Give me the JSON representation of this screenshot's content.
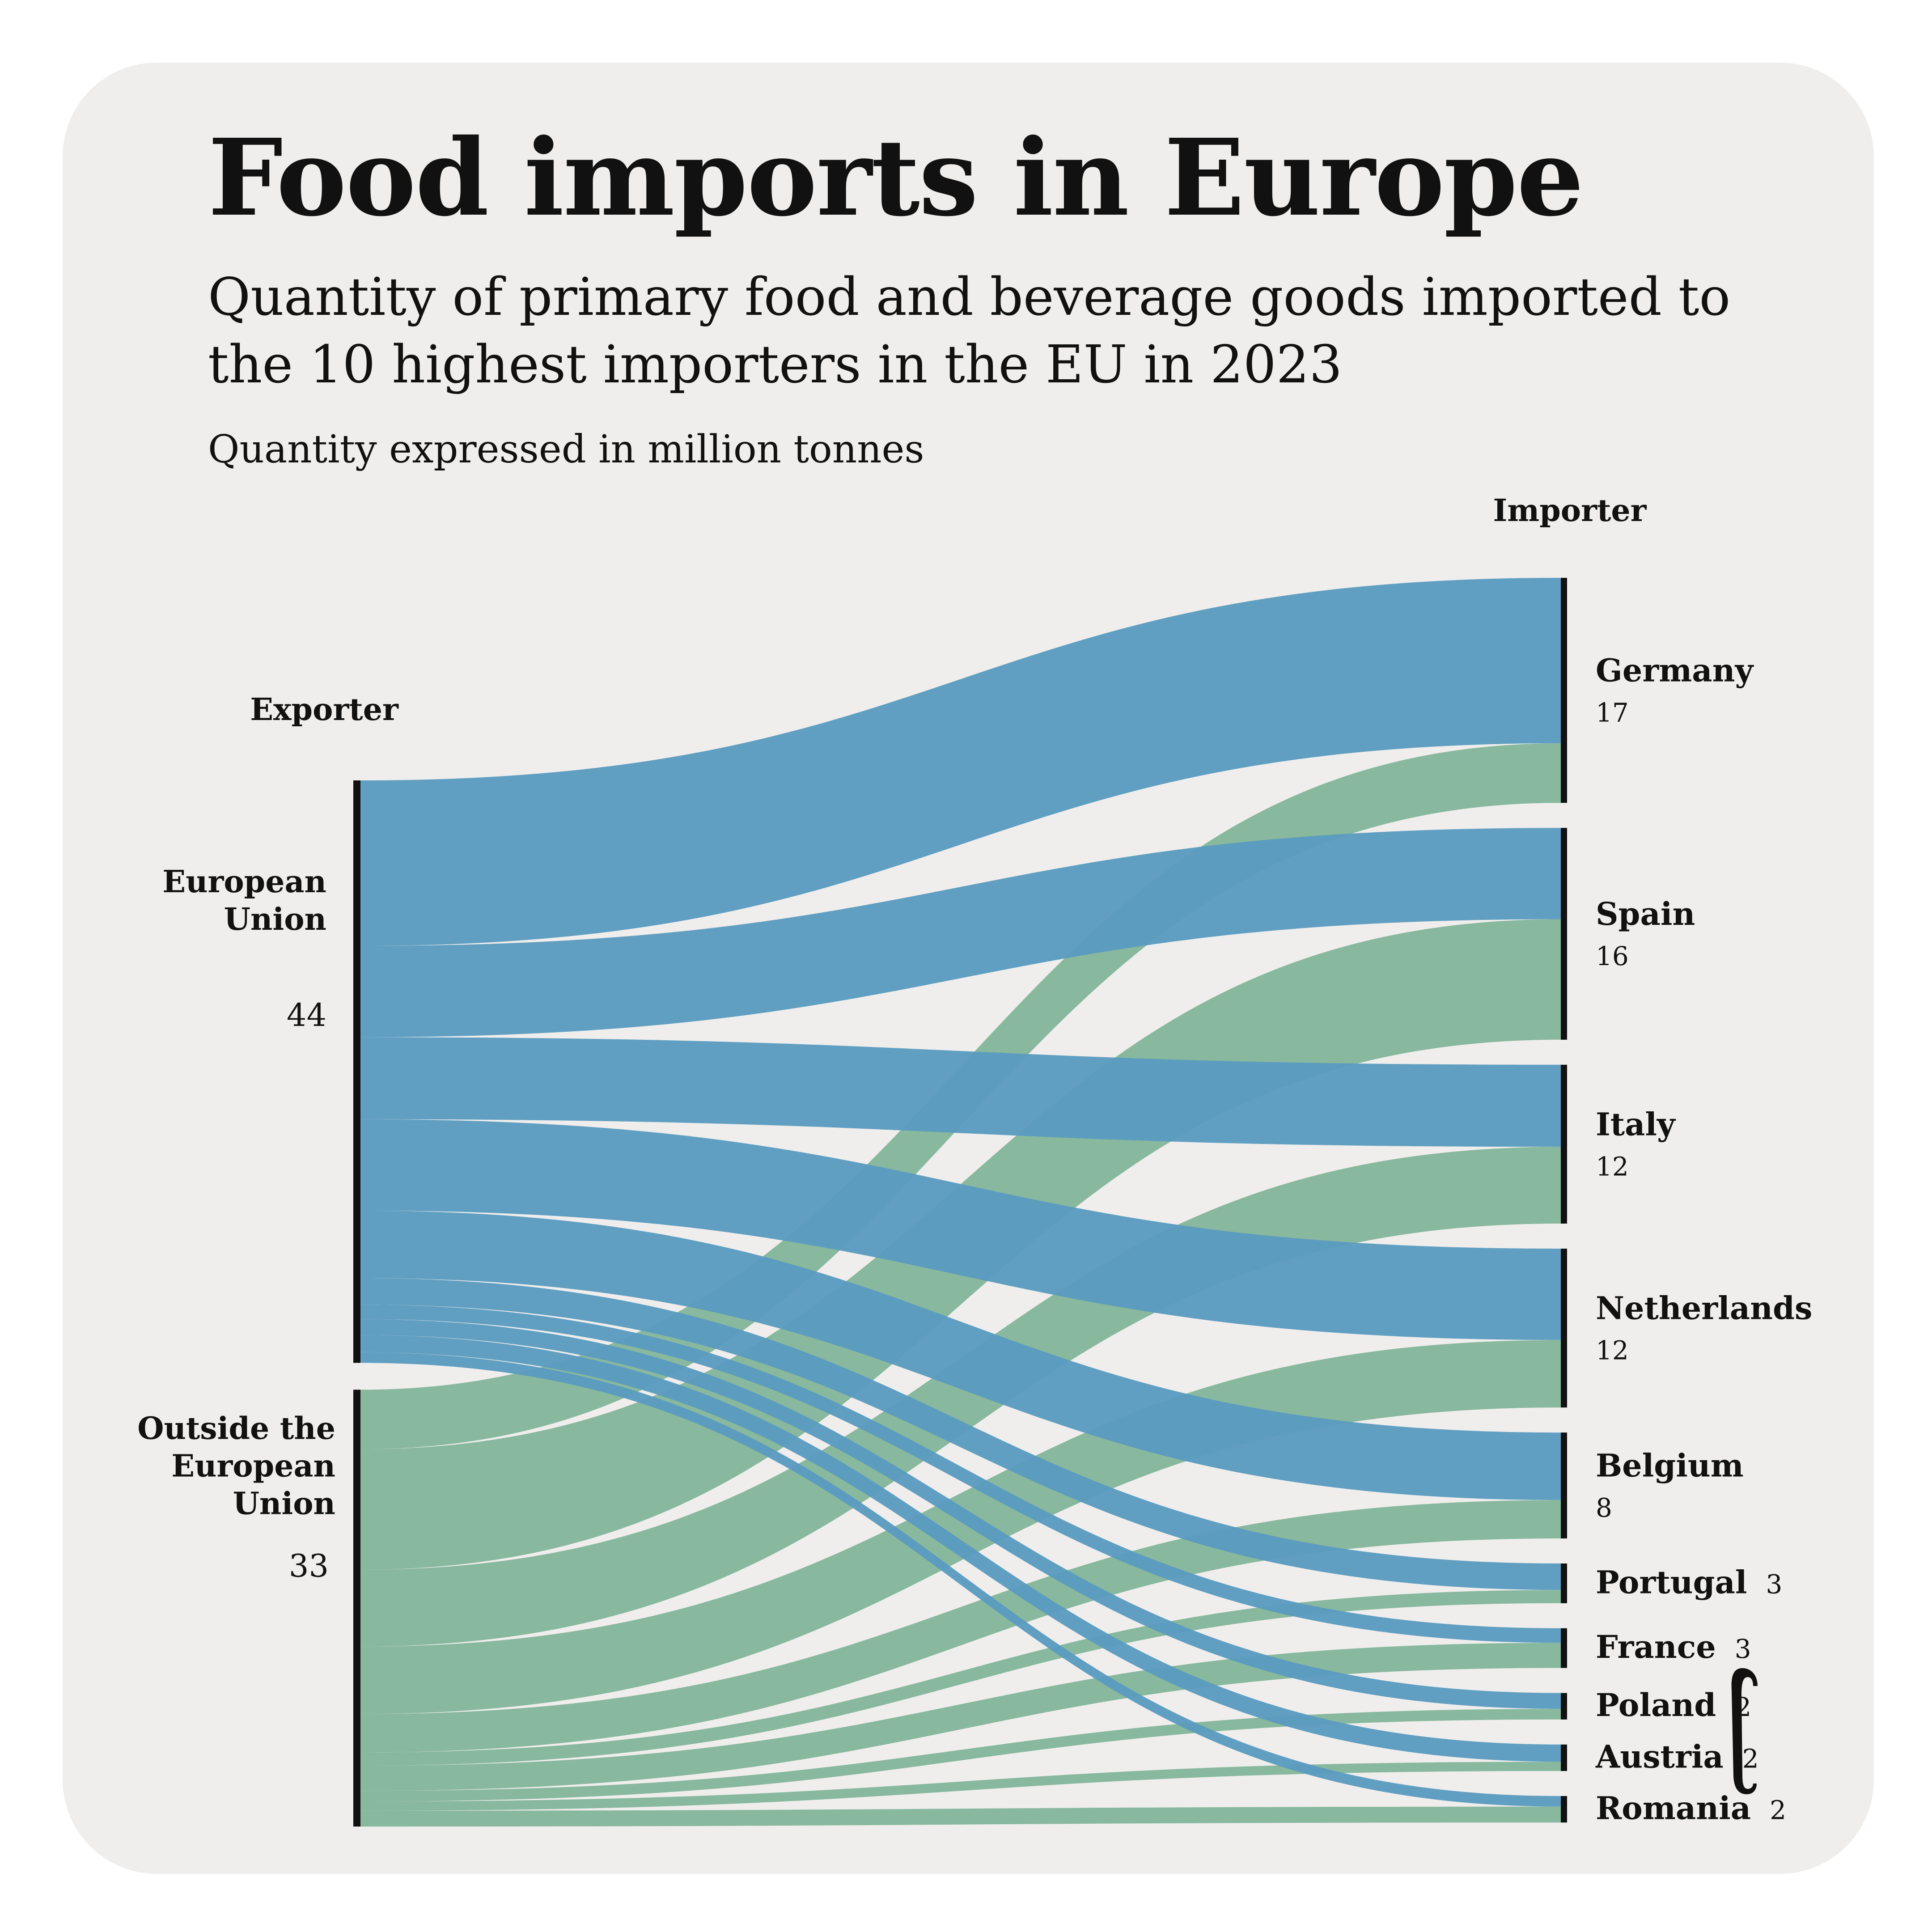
{
  "header": {
    "title": "Food imports in Europe",
    "subtitle": "Quantity of primary food and beverage goods imported to the 10 highest importers in the EU in 2023",
    "note": "Quantity expressed in million tonnes"
  },
  "chart_data": {
    "type": "sankey",
    "unit": "million tonnes",
    "source_header": "Exporter",
    "target_header": "Importer",
    "colors": {
      "eu": "#5b9bc0",
      "non_eu": "#88b89e",
      "node_bar": "#111111"
    },
    "sources": [
      {
        "name": "European Union",
        "value": 44,
        "color_key": "eu"
      },
      {
        "name": "Outside the European Union",
        "value": 33,
        "color_key": "non_eu"
      }
    ],
    "targets": [
      {
        "name": "Germany",
        "value": 17
      },
      {
        "name": "Spain",
        "value": 16
      },
      {
        "name": "Italy",
        "value": 12
      },
      {
        "name": "Netherlands",
        "value": 12
      },
      {
        "name": "Belgium",
        "value": 8
      },
      {
        "name": "Portugal",
        "value": 3
      },
      {
        "name": "France",
        "value": 3
      },
      {
        "name": "Poland",
        "value": 2
      },
      {
        "name": "Austria",
        "value": 2
      },
      {
        "name": "Romania",
        "value": 2
      }
    ],
    "flows": [
      {
        "source": "European Union",
        "target": "Germany",
        "value": 12.5
      },
      {
        "source": "European Union",
        "target": "Spain",
        "value": 6.9
      },
      {
        "source": "European Union",
        "target": "Italy",
        "value": 6.2
      },
      {
        "source": "European Union",
        "target": "Netherlands",
        "value": 6.9
      },
      {
        "source": "European Union",
        "target": "Belgium",
        "value": 5.1
      },
      {
        "source": "European Union",
        "target": "Portugal",
        "value": 2.0
      },
      {
        "source": "European Union",
        "target": "France",
        "value": 1.1
      },
      {
        "source": "European Union",
        "target": "Poland",
        "value": 1.2
      },
      {
        "source": "European Union",
        "target": "Austria",
        "value": 1.3
      },
      {
        "source": "European Union",
        "target": "Romania",
        "value": 0.8
      },
      {
        "source": "Outside the European Union",
        "target": "Germany",
        "value": 4.5
      },
      {
        "source": "Outside the European Union",
        "target": "Spain",
        "value": 9.1
      },
      {
        "source": "Outside the European Union",
        "target": "Italy",
        "value": 5.8
      },
      {
        "source": "Outside the European Union",
        "target": "Netherlands",
        "value": 5.1
      },
      {
        "source": "Outside the European Union",
        "target": "Belgium",
        "value": 2.9
      },
      {
        "source": "Outside the European Union",
        "target": "Portugal",
        "value": 1.0
      },
      {
        "source": "Outside the European Union",
        "target": "France",
        "value": 1.9
      },
      {
        "source": "Outside the European Union",
        "target": "Poland",
        "value": 0.8
      },
      {
        "source": "Outside the European Union",
        "target": "Austria",
        "value": 0.7
      },
      {
        "source": "Outside the European Union",
        "target": "Romania",
        "value": 1.2
      }
    ]
  }
}
